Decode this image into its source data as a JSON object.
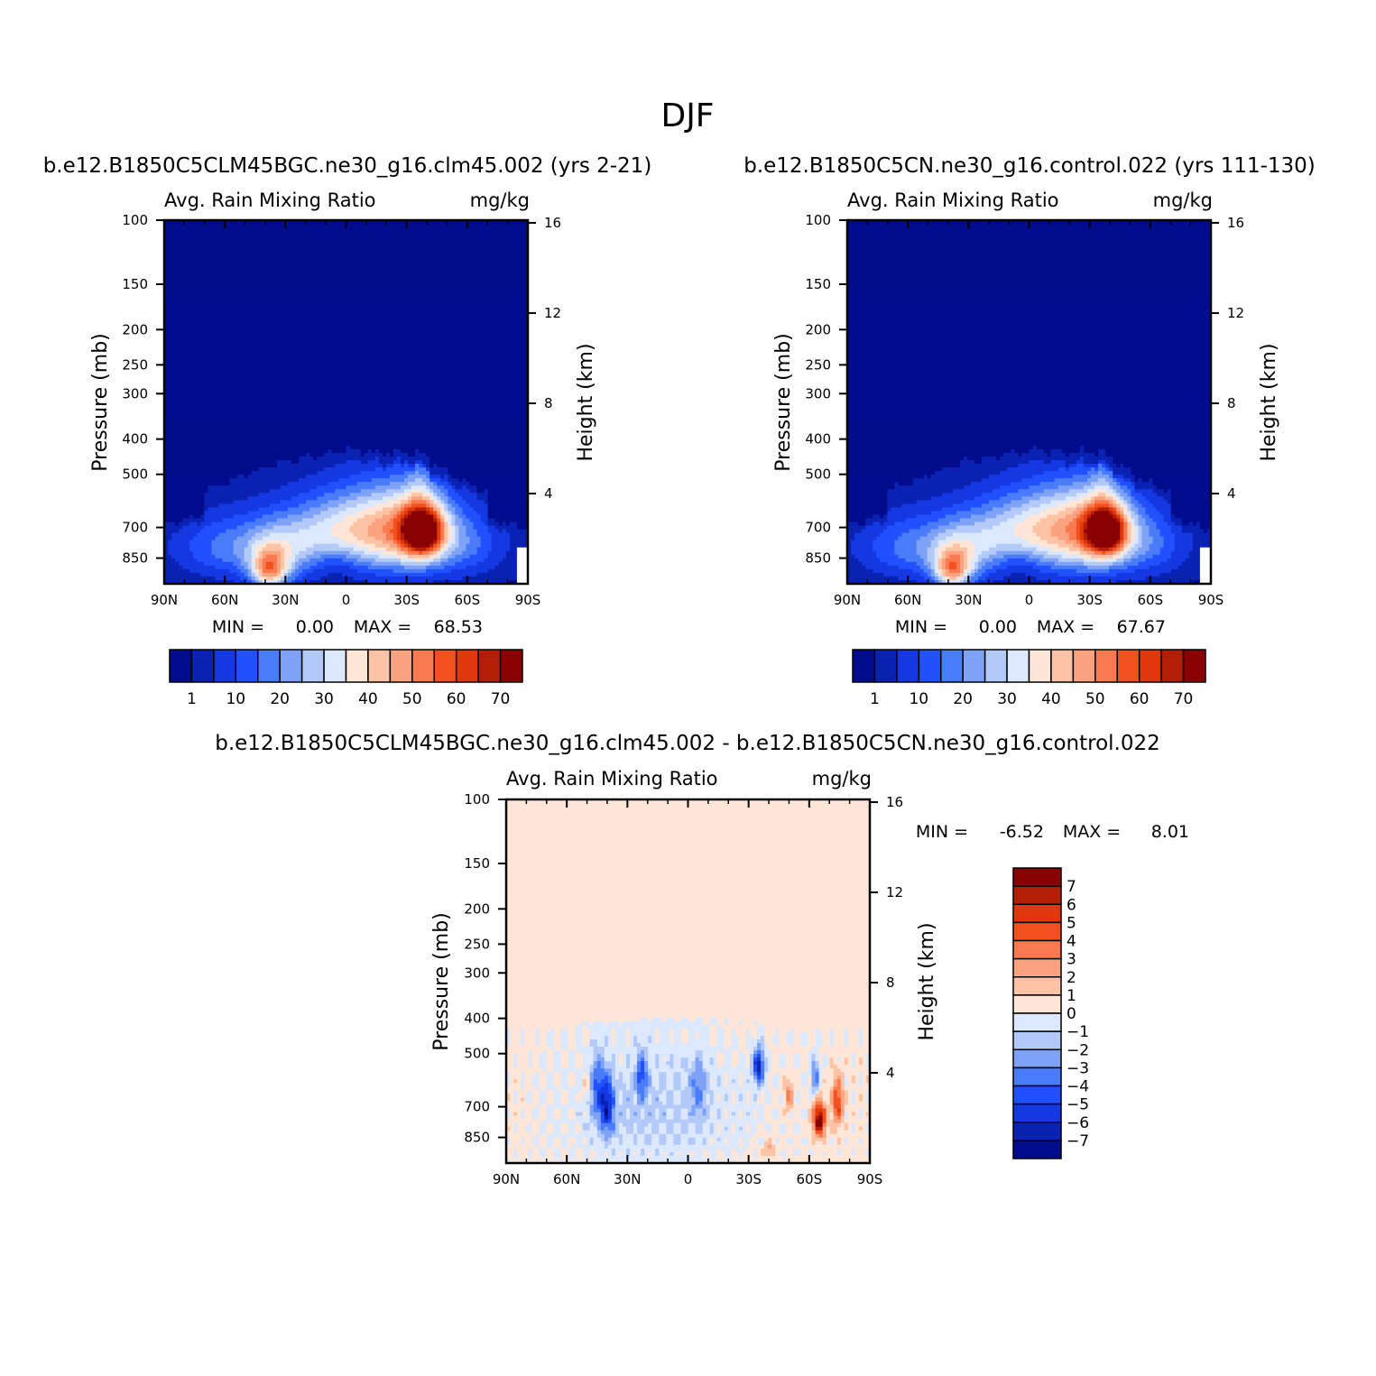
{
  "figure": {
    "title": "DJF"
  },
  "chart_data": [
    {
      "type": "heatmap",
      "case_title": "b.e12.B1850C5CLM45BGC.ne30_g16.clm45.002 (yrs 2-21)",
      "left_label": "Avg. Rain Mixing Ratio",
      "right_label": "mg/kg",
      "xlabel": "",
      "ylabel": "Pressure (mb)",
      "ylabel_right": "Height (km)",
      "x_ticks": [
        "90N",
        "60N",
        "30N",
        "0",
        "30S",
        "60S",
        "90S"
      ],
      "y_ticks": [
        100,
        150,
        200,
        250,
        300,
        400,
        500,
        700,
        850
      ],
      "y_ticks_right": [
        16,
        12,
        8,
        4
      ],
      "ylim": [
        100,
        1000
      ],
      "min_label": "MIN =",
      "min": "0.00",
      "max_label": "MAX =",
      "max": "68.53",
      "levels": [
        1,
        5,
        10,
        15,
        20,
        25,
        30,
        35,
        40,
        45,
        50,
        55,
        60,
        65,
        70
      ],
      "level_labels": [
        "1",
        "10",
        "20",
        "30",
        "40",
        "50",
        "60",
        "70"
      ],
      "colors": [
        "#000c8b",
        "#0a22b4",
        "#1438e1",
        "#2150ff",
        "#4a7cf9",
        "#7ea3f6",
        "#b3c9f8",
        "#dce8fd",
        "#ffe6d6",
        "#fdc3a5",
        "#fba381",
        "#f97a4f",
        "#f2511f",
        "#df380a",
        "#b41e06",
        "#890102"
      ],
      "features": [
        {
          "desc": "NH midlatitude max",
          "lat": 38,
          "p": 880,
          "peak": 52
        },
        {
          "desc": "SH midlatitude max",
          "lat": -38,
          "p": 720,
          "peak": 68.53
        }
      ]
    },
    {
      "type": "heatmap",
      "case_title": "b.e12.B1850C5CN.ne30_g16.control.022 (yrs 111-130)",
      "left_label": "Avg. Rain Mixing Ratio",
      "right_label": "mg/kg",
      "xlabel": "",
      "ylabel": "Pressure (mb)",
      "ylabel_right": "Height (km)",
      "x_ticks": [
        "90N",
        "60N",
        "30N",
        "0",
        "30S",
        "60S",
        "90S"
      ],
      "y_ticks": [
        100,
        150,
        200,
        250,
        300,
        400,
        500,
        700,
        850
      ],
      "y_ticks_right": [
        16,
        12,
        8,
        4
      ],
      "ylim": [
        100,
        1000
      ],
      "min_label": "MIN =",
      "min": "0.00",
      "max_label": "MAX =",
      "max": "67.67",
      "levels": [
        1,
        5,
        10,
        15,
        20,
        25,
        30,
        35,
        40,
        45,
        50,
        55,
        60,
        65,
        70
      ],
      "level_labels": [
        "1",
        "10",
        "20",
        "30",
        "40",
        "50",
        "60",
        "70"
      ],
      "colors": [
        "#000c8b",
        "#0a22b4",
        "#1438e1",
        "#2150ff",
        "#4a7cf9",
        "#7ea3f6",
        "#b3c9f8",
        "#dce8fd",
        "#ffe6d6",
        "#fdc3a5",
        "#fba381",
        "#f97a4f",
        "#f2511f",
        "#df380a",
        "#b41e06",
        "#890102"
      ],
      "features": [
        {
          "desc": "NH midlatitude max",
          "lat": 38,
          "p": 880,
          "peak": 50
        },
        {
          "desc": "SH midlatitude max",
          "lat": -38,
          "p": 720,
          "peak": 67.67
        }
      ]
    },
    {
      "type": "heatmap",
      "case_title": "b.e12.B1850C5CLM45BGC.ne30_g16.clm45.002 - b.e12.B1850C5CN.ne30_g16.control.022",
      "left_label": "Avg. Rain Mixing Ratio",
      "right_label": "mg/kg",
      "xlabel": "",
      "ylabel": "Pressure (mb)",
      "ylabel_right": "Height (km)",
      "x_ticks": [
        "90N",
        "60N",
        "30N",
        "0",
        "30S",
        "60S",
        "90S"
      ],
      "y_ticks": [
        100,
        150,
        200,
        250,
        300,
        400,
        500,
        700,
        850
      ],
      "y_ticks_right": [
        16,
        12,
        8,
        4
      ],
      "ylim": [
        100,
        1000
      ],
      "min_label": "MIN =",
      "min": "-6.52",
      "max_label": "MAX =",
      "max": "8.01",
      "levels": [
        -7,
        -6,
        -5,
        -4,
        -3,
        -2,
        -1,
        0,
        1,
        2,
        3,
        4,
        5,
        6,
        7
      ],
      "level_labels": [
        "7",
        "6",
        "5",
        "4",
        "3",
        "2",
        "1",
        "0",
        "−1",
        "−2",
        "−3",
        "−4",
        "−5",
        "−6",
        "−7"
      ],
      "colors": [
        "#000c8b",
        "#0a22b4",
        "#1438e1",
        "#2150ff",
        "#4a7cf9",
        "#7ea3f6",
        "#b3c9f8",
        "#dce8fd",
        "#ffe6d6",
        "#fdc3a5",
        "#fba381",
        "#f97a4f",
        "#f2511f",
        "#df380a",
        "#b41e06",
        "#890102"
      ],
      "features": [
        {
          "desc": "negative anomaly",
          "lat": 40,
          "p": 700,
          "peak": -5.5
        },
        {
          "desc": "negative anomaly",
          "lat": 23,
          "p": 580,
          "peak": -4
        },
        {
          "desc": "negative anomaly",
          "lat": -35,
          "p": 540,
          "peak": -6.52
        },
        {
          "desc": "negative anomaly",
          "lat": -63,
          "p": 580,
          "peak": -4
        },
        {
          "desc": "positive anomaly",
          "lat": -65,
          "p": 760,
          "peak": 8.01
        },
        {
          "desc": "positive anomaly",
          "lat": -74,
          "p": 680,
          "peak": 5
        },
        {
          "desc": "positive anomaly",
          "lat": -50,
          "p": 650,
          "peak": 3
        }
      ]
    }
  ]
}
